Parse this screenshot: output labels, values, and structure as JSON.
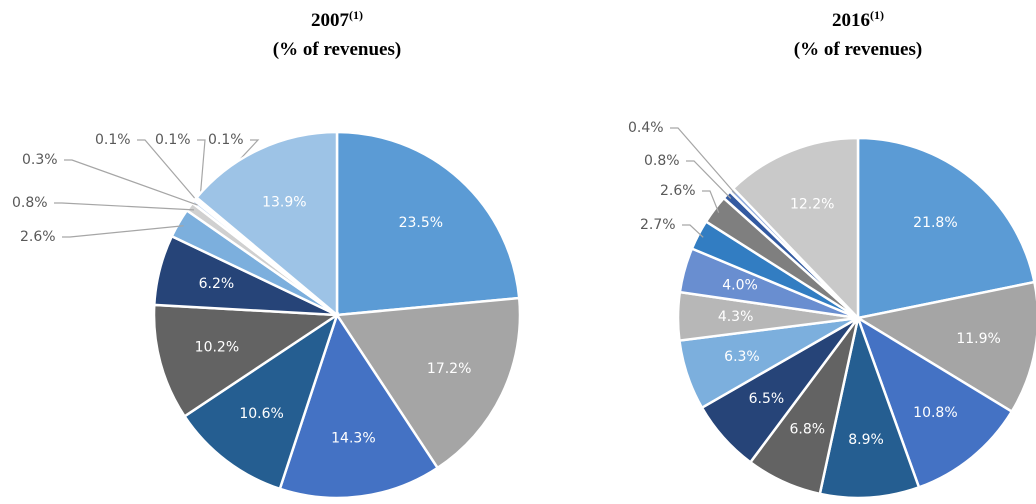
{
  "chart_data": [
    {
      "type": "pie",
      "title": "2007",
      "title_superscript": "(1)",
      "subtitle": "(% of revenues)",
      "values": [
        23.5,
        17.2,
        14.3,
        10.6,
        10.2,
        6.2,
        2.6,
        0.8,
        0.3,
        0.1,
        0.1,
        0.1,
        13.9
      ],
      "value_labels": [
        "23.5%",
        "17.2%",
        "14.3%",
        "10.6%",
        "10.2%",
        "6.2%",
        "2.6%",
        "0.8%",
        "0.3%",
        "0.1%",
        "0.1%",
        "0.1%",
        "13.9%"
      ],
      "colors": [
        "#5b9bd5",
        "#a5a5a5",
        "#4472c4",
        "#255e91",
        "#636363",
        "#264478",
        "#7cafdd",
        "#d0d0d0",
        "#c9d9ef",
        "#a9c3e6",
        "#bdbdbd",
        "#8faadc",
        "#9dc3e6"
      ]
    },
    {
      "type": "pie",
      "title": "2016",
      "title_superscript": "(1)",
      "subtitle": "(% of revenues)",
      "values": [
        21.8,
        11.9,
        10.8,
        8.9,
        6.8,
        6.5,
        6.3,
        4.3,
        4.0,
        2.7,
        2.6,
        0.8,
        0.4,
        12.2
      ],
      "value_labels": [
        "21.8%",
        "11.9%",
        "10.8%",
        "8.9%",
        "6.8%",
        "6.5%",
        "6.3%",
        "4.3%",
        "4.0%",
        "2.7%",
        "2.6%",
        "0.8%",
        "0.4%",
        "12.2%"
      ],
      "colors": [
        "#5b9bd5",
        "#a5a5a5",
        "#4472c4",
        "#255e91",
        "#636363",
        "#264478",
        "#7cafdd",
        "#b7b7b7",
        "#698ed0",
        "#327dc2",
        "#7f7f7f",
        "#335aa1",
        "#8faadc",
        "#c9c9c9"
      ]
    }
  ]
}
